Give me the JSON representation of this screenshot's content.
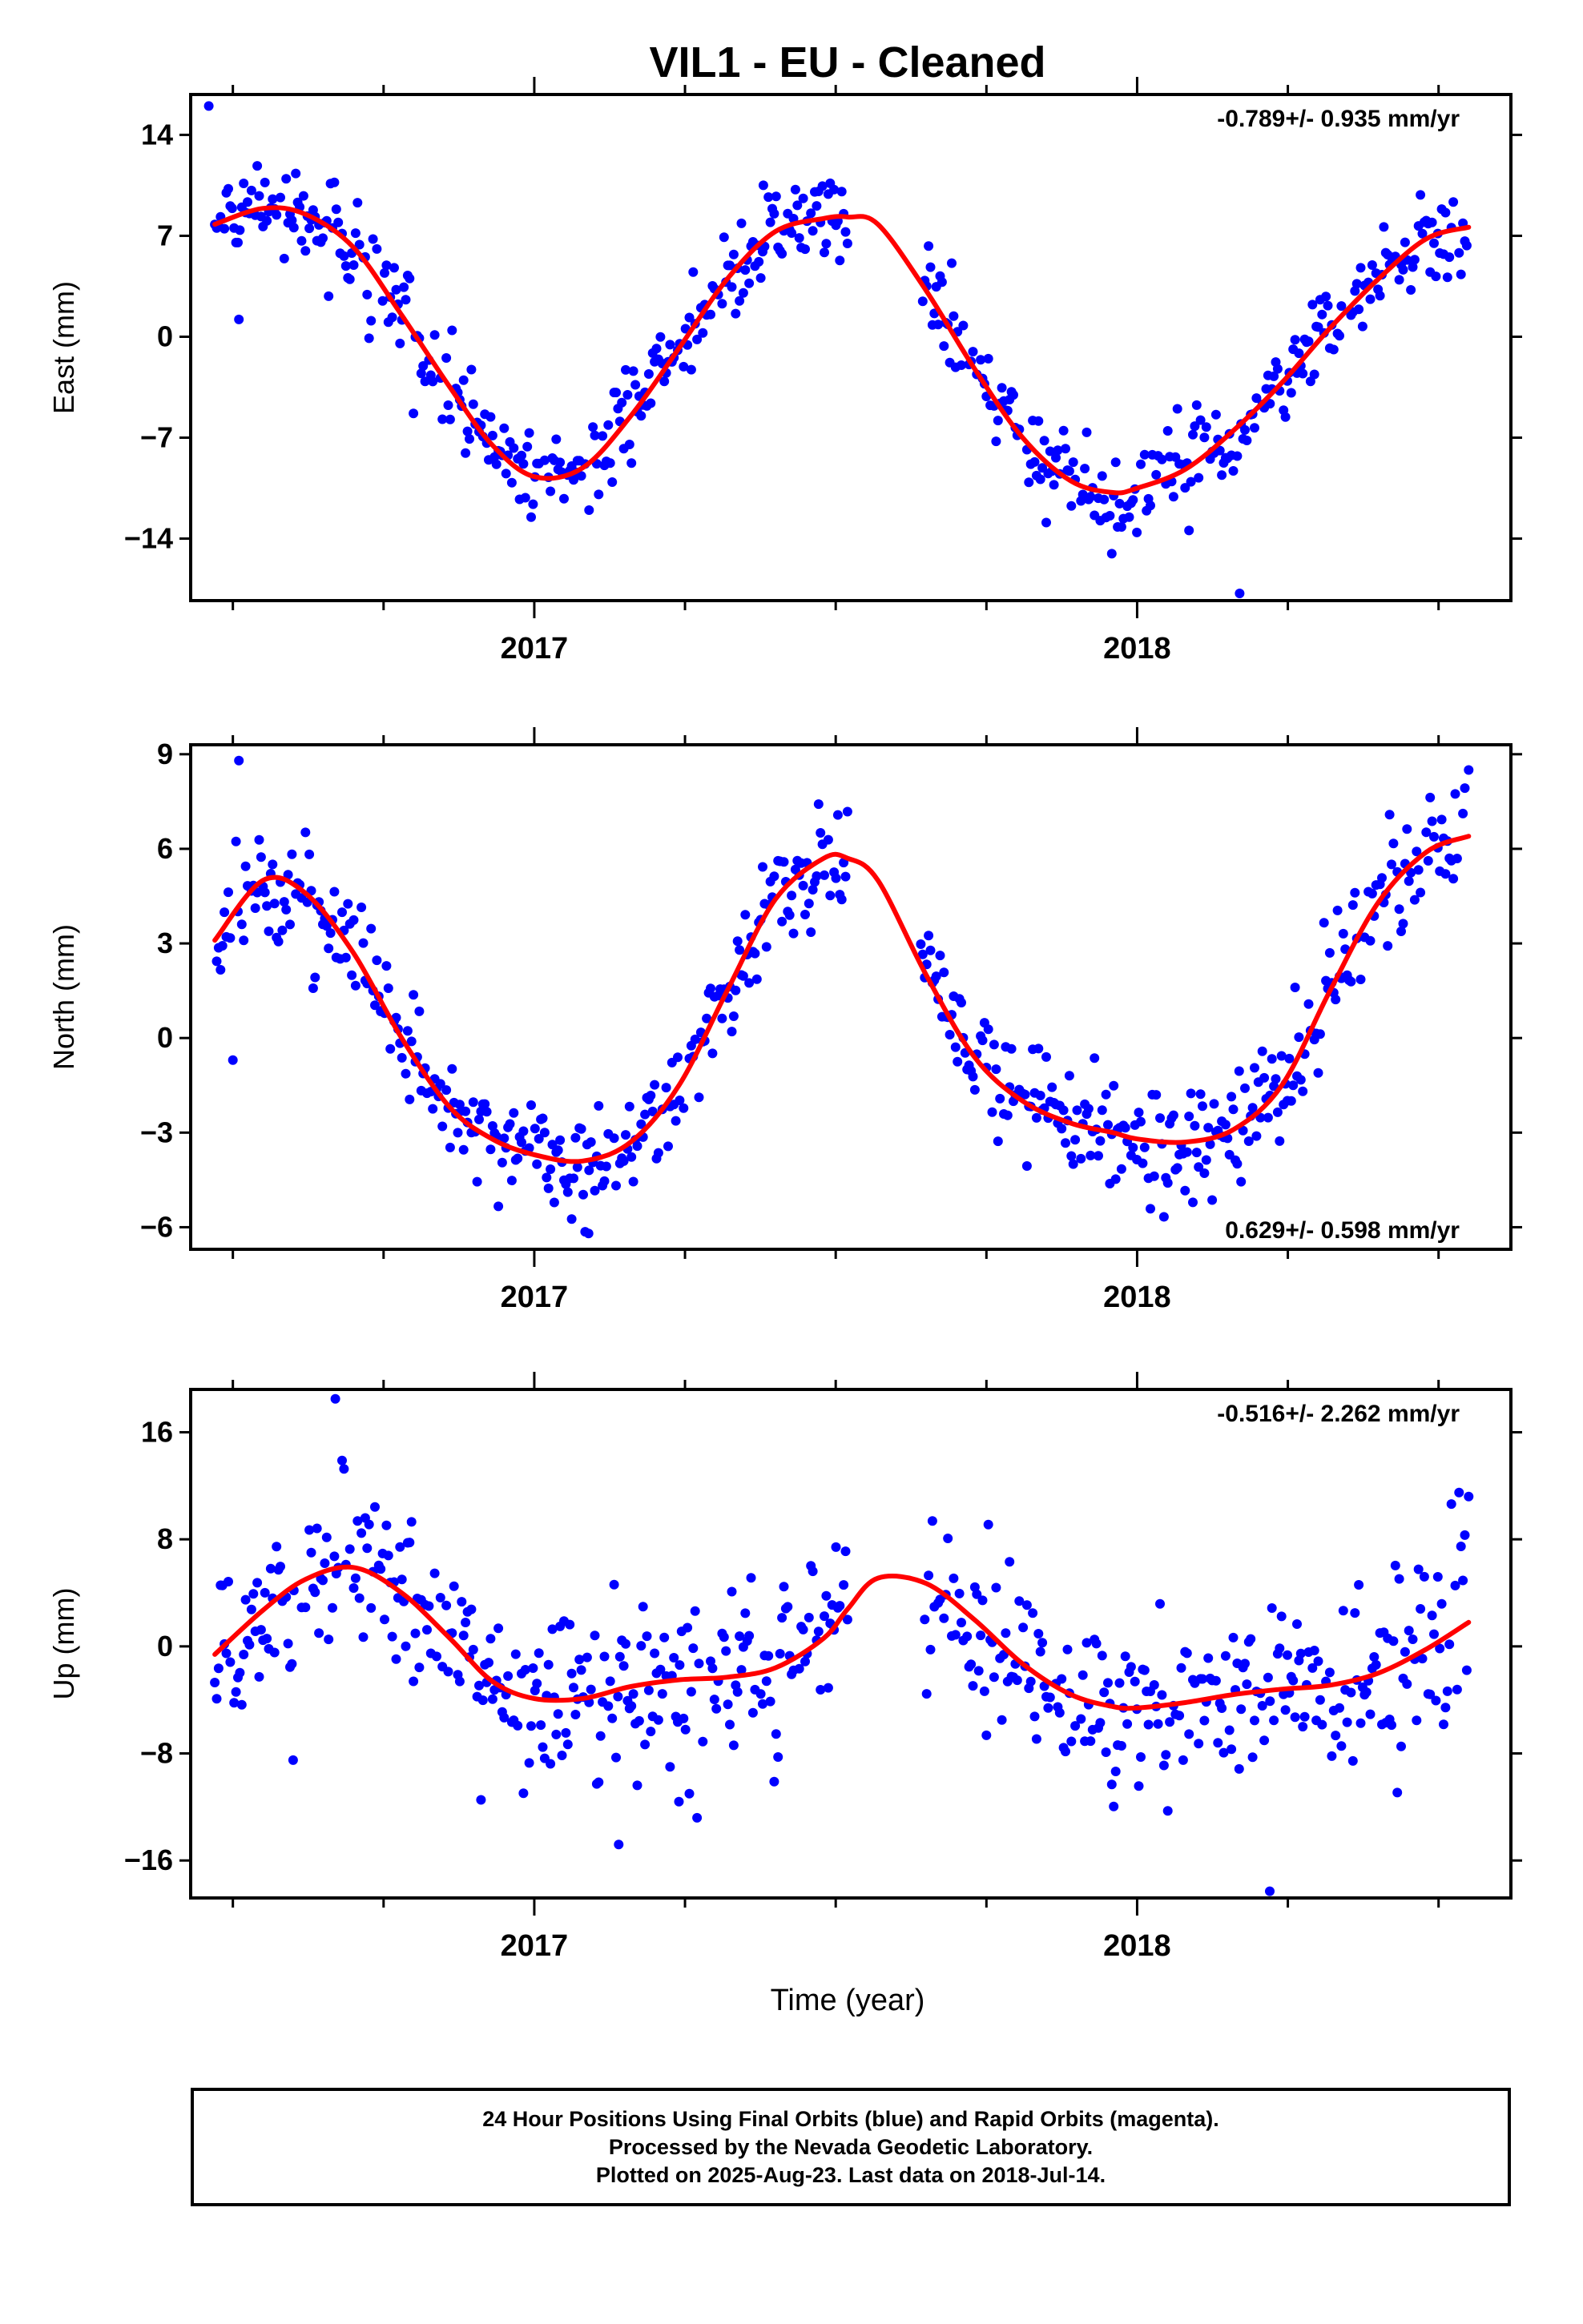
{
  "chart_data": {
    "type": "scatter",
    "title": "VIL1  - EU - Cleaned",
    "xlabel": "Time (year)",
    "x_tick_labels": [
      "2017",
      "2018"
    ],
    "xlim": [
      2016.43,
      2018.62
    ],
    "panels": [
      {
        "id": "east",
        "ylabel": "East (mm)",
        "ylim": [
          -18.3,
          16.8
        ],
        "y_ticks": [
          -14,
          -7,
          0,
          7,
          14
        ],
        "rate_label": "-0.789+/- 0.935 mm/yr",
        "rate_position": "top-right",
        "model": {
          "x": [
            2016.47,
            2016.55,
            2016.62,
            2016.7,
            2016.78,
            2016.86,
            2016.93,
            2017.0,
            2017.08,
            2017.16,
            2017.24,
            2017.32,
            2017.4,
            2017.48,
            2017.52,
            2017.57,
            2017.65,
            2017.73,
            2017.81,
            2017.89,
            2017.96,
            2018.0,
            2018.08,
            2018.16,
            2018.24,
            2018.32,
            2018.4,
            2018.48,
            2018.55
          ],
          "y": [
            7.8,
            8.9,
            8.5,
            6.2,
            1.5,
            -3.5,
            -7.5,
            -9.7,
            -9.1,
            -5.5,
            -0.8,
            4.0,
            7.3,
            8.2,
            8.3,
            7.8,
            3.2,
            -2.2,
            -7.0,
            -10.0,
            -10.8,
            -10.5,
            -9.2,
            -6.5,
            -3.2,
            0.6,
            4.0,
            6.8,
            7.6
          ]
        },
        "noise": 1.6,
        "outliers": [
          [
            2016.46,
            16.0
          ],
          [
            2018.17,
            -17.8
          ],
          [
            2016.51,
            1.2
          ],
          [
            2017.38,
            10.5
          ]
        ]
      },
      {
        "id": "north",
        "ylabel": "North (mm)",
        "ylim": [
          -6.7,
          9.3
        ],
        "y_ticks": [
          -6,
          -3,
          0,
          3,
          6,
          9
        ],
        "rate_label": "0.629+/- 0.598 mm/yr",
        "rate_position": "bottom-right",
        "model": {
          "x": [
            2016.47,
            2016.55,
            2016.62,
            2016.7,
            2016.78,
            2016.86,
            2016.93,
            2017.0,
            2017.08,
            2017.16,
            2017.24,
            2017.32,
            2017.4,
            2017.48,
            2017.52,
            2017.57,
            2017.65,
            2017.73,
            2017.81,
            2017.89,
            2017.96,
            2018.0,
            2018.08,
            2018.16,
            2018.24,
            2018.32,
            2018.4,
            2018.48,
            2018.55
          ],
          "y": [
            3.1,
            5.0,
            4.6,
            2.7,
            0.0,
            -2.2,
            -3.2,
            -3.7,
            -3.9,
            -3.3,
            -1.5,
            1.5,
            4.4,
            5.7,
            5.7,
            5.0,
            2.0,
            -0.6,
            -2.0,
            -2.7,
            -3.0,
            -3.2,
            -3.3,
            -2.9,
            -1.5,
            1.5,
            4.3,
            5.9,
            6.4
          ]
        },
        "noise": 0.9,
        "outliers": [
          [
            2016.51,
            8.8
          ],
          [
            2016.5,
            -0.7
          ],
          [
            2017.09,
            -6.2
          ],
          [
            2018.55,
            8.5
          ]
        ]
      },
      {
        "id": "up",
        "ylabel": "Up (mm)",
        "ylim": [
          -18.8,
          19.2
        ],
        "y_ticks": [
          -16,
          -8,
          0,
          8,
          16
        ],
        "rate_label": "-0.516+/- 2.262 mm/yr",
        "rate_position": "top-right",
        "model": {
          "x": [
            2016.47,
            2016.55,
            2016.62,
            2016.7,
            2016.78,
            2016.86,
            2016.93,
            2017.0,
            2017.08,
            2017.16,
            2017.24,
            2017.32,
            2017.4,
            2017.48,
            2017.52,
            2017.57,
            2017.65,
            2017.73,
            2017.81,
            2017.89,
            2017.96,
            2018.0,
            2018.08,
            2018.16,
            2018.24,
            2018.32,
            2018.4,
            2018.48,
            2018.55
          ],
          "y": [
            -0.6,
            2.7,
            5.0,
            5.9,
            4.0,
            0.6,
            -2.6,
            -3.9,
            -3.9,
            -3.0,
            -2.5,
            -2.3,
            -1.6,
            0.6,
            2.8,
            5.1,
            4.7,
            2.0,
            -1.3,
            -3.6,
            -4.5,
            -4.6,
            -4.2,
            -3.6,
            -3.2,
            -2.9,
            -2.0,
            -0.2,
            1.8
          ]
        },
        "noise": 3.4,
        "outliers": [
          [
            2016.67,
            18.5
          ],
          [
            2016.6,
            -8.5
          ],
          [
            2018.22,
            -18.3
          ],
          [
            2017.14,
            -14.8
          ],
          [
            2017.24,
            -11.6
          ],
          [
            2018.55,
            11.2
          ]
        ]
      }
    ],
    "marker_color": "#0000ff",
    "model_color": "#ff0000"
  },
  "footer": {
    "line1": "24 Hour Positions Using Final Orbits (blue) and Rapid Orbits (magenta).",
    "line2": "Processed by the Nevada Geodetic Laboratory.",
    "line3": "Plotted on 2025-Aug-23. Last data on 2018-Jul-14."
  }
}
